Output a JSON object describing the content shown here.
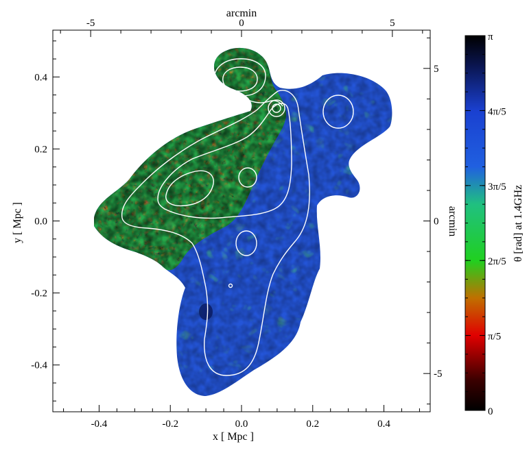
{
  "chart_data": {
    "type": "heatmap",
    "xlabel": "x [ Mpc ]",
    "ylabel": "y [ Mpc ]",
    "xlim": [
      -0.53,
      0.53
    ],
    "ylim": [
      -0.53,
      0.53
    ],
    "x_ticks": [
      "-0.4",
      "-0.2",
      "0.0",
      "0.2",
      "0.4"
    ],
    "y_ticks": [
      "-0.4",
      "-0.2",
      "0.0",
      "0.2",
      "0.4"
    ],
    "x_tick_values": [
      -0.4,
      -0.2,
      0.0,
      0.2,
      0.4
    ],
    "y_tick_values": [
      -0.4,
      -0.2,
      0.0,
      0.2,
      0.4
    ],
    "top_axis_label": "arcmin",
    "top_ticks": [
      "-5",
      "0",
      "5"
    ],
    "top_tick_values": [
      -5,
      0,
      5
    ],
    "right_axis_label": "arcmin",
    "right_ticks": [
      "5",
      "0",
      "-5"
    ],
    "right_tick_values": [
      5,
      0,
      -5
    ],
    "arcmin_per_mpc": 11.8,
    "colorbar": {
      "label": "θ [rad] at 1.4GHz",
      "range": [
        0,
        3.14159
      ],
      "ticks": [
        "π",
        "4π/5",
        "3π/5",
        "2π/5",
        "π/5",
        "0"
      ],
      "tick_values": [
        3.14159,
        2.51327,
        1.88496,
        1.25664,
        0.62832,
        0
      ],
      "colors": [
        "#000000",
        "#d00000",
        "#22d822",
        "#1e50d8",
        "#000000"
      ]
    },
    "grid": false
  }
}
